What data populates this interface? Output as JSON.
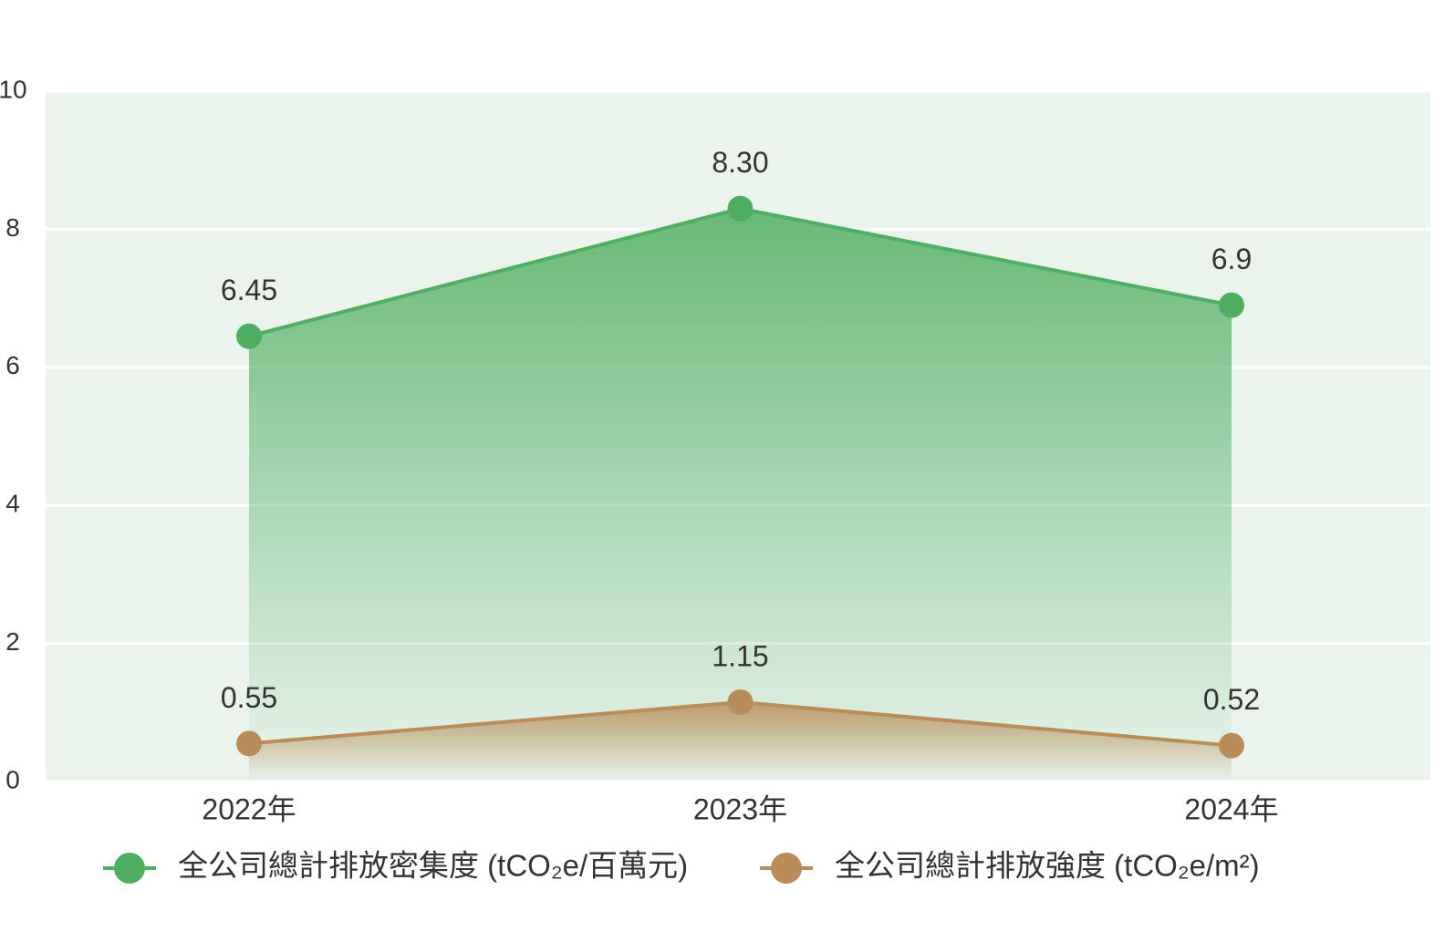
{
  "chart_data": {
    "type": "line",
    "categories": [
      "2022年",
      "2023年",
      "2024年"
    ],
    "series": [
      {
        "name": "全公司總計排放密集度 (tCO₂e/百萬元)",
        "color": "#4fae62",
        "values": [
          6.45,
          8.3,
          6.9
        ],
        "value_labels": [
          "6.45",
          "8.30",
          "6.9"
        ]
      },
      {
        "name": "全公司總計排放強度 (tCO₂e/m²)",
        "color": "#b88d5a",
        "values": [
          0.55,
          1.15,
          0.52
        ],
        "value_labels": [
          "0.55",
          "1.15",
          "0.52"
        ]
      }
    ],
    "ylim": [
      0,
      10
    ],
    "yticks": [
      0,
      2,
      4,
      6,
      8,
      10
    ],
    "grid": true,
    "legend": "bottom"
  }
}
